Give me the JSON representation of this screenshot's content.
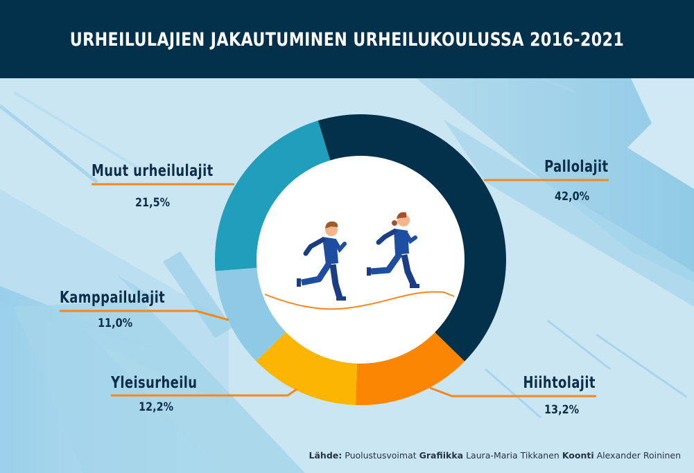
{
  "header": {
    "title": "URHEILULAJIEN JAKAUTUMINEN URHEILUKOULUSSA 2016-2021"
  },
  "chart_data": {
    "type": "pie",
    "variant": "donut",
    "title": "URHEILULAJIEN JAKAUTUMINEN URHEILUKOULUSSA 2016-2021",
    "unit": "%",
    "decimal_separator": ",",
    "categories": [
      "Pallolajit",
      "Hiihtolajit",
      "Yleisurheilu",
      "Kamppailulajit",
      "Muut urheilulajit"
    ],
    "values": [
      42.0,
      13.2,
      12.2,
      11.0,
      21.5
    ],
    "value_labels": [
      "42,0%",
      "13,2%",
      "12,2%",
      "11,0%",
      "21,5%"
    ],
    "colors": [
      "#03304a",
      "#fb8604",
      "#fdb504",
      "#8ecae6",
      "#219ebc"
    ],
    "direction": "clockwise",
    "legend": "none",
    "labels_placement": "outside with leader lines",
    "center_image": "two-runners-icon"
  },
  "labels": {
    "pallolajit": {
      "name": "Pallolajit",
      "value": "42,0%"
    },
    "hiihtolajit": {
      "name": "Hiihtolajit",
      "value": "13,2%"
    },
    "yleisurheilu": {
      "name": "Yleisurheilu",
      "value": "12,2%"
    },
    "kamppailulajit": {
      "name": "Kamppailulajit",
      "value": "11,0%"
    },
    "muut": {
      "name": "Muut urheilulajit",
      "value": "21,5%"
    }
  },
  "footer": {
    "source_label": "Lähde:",
    "source_value": "Puolustusvoimat",
    "graphics_label": "Grafiikka",
    "graphics_value": "Laura-Maria Tikkanen",
    "compilation_label": "Koonti",
    "compilation_value": "Alexander Roininen"
  },
  "colors": {
    "header_bg": "#03304a",
    "background": "#cbe6f3",
    "leader_line": "#f7861b",
    "text": "#0d2d48"
  }
}
